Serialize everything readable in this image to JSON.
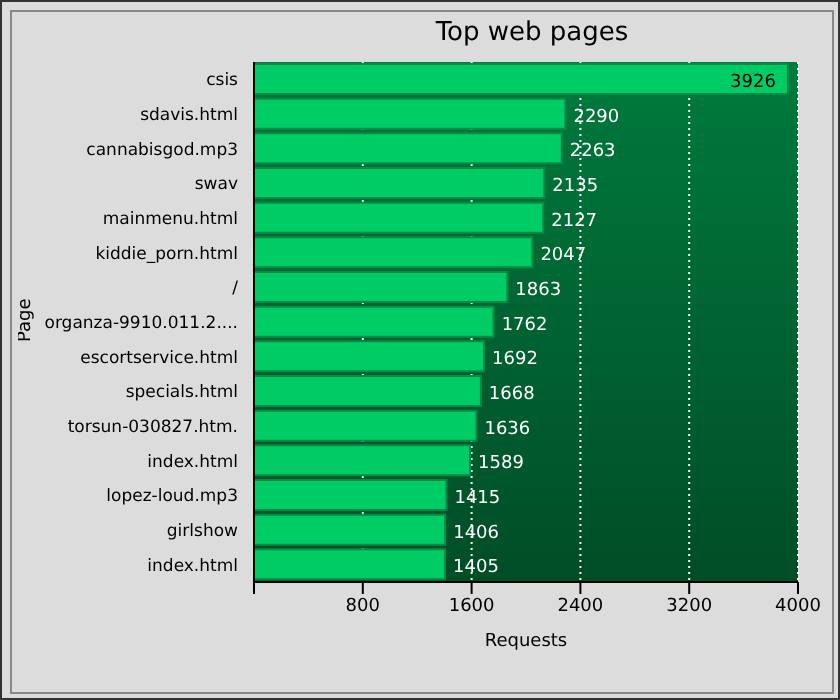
{
  "chart_data": {
    "type": "bar",
    "orientation": "horizontal",
    "title": "Top web pages",
    "xlabel": "Requests",
    "ylabel": "Page",
    "categories": [
      "csis",
      "sdavis.html",
      "cannabisgod.mp3",
      "swav",
      "mainmenu.html",
      "kiddie_porn.html",
      "/",
      "organza-9910.011.2....",
      "escortservice.html",
      "specials.html",
      "torsun-030827.htm.",
      "index.html",
      "lopez-loud.mp3",
      "girlshow",
      "index.html"
    ],
    "values": [
      3926,
      2290,
      2263,
      2135,
      2127,
      2047,
      1863,
      1762,
      1692,
      1668,
      1636,
      1589,
      1415,
      1406,
      1405
    ],
    "color": "#00cc66",
    "xlim": [
      0,
      4000
    ],
    "xticks": [
      {
        "value": 0,
        "label": null
      },
      800,
      1600,
      2400,
      3200,
      4000
    ],
    "grid": "x",
    "data_labels": true
  }
}
